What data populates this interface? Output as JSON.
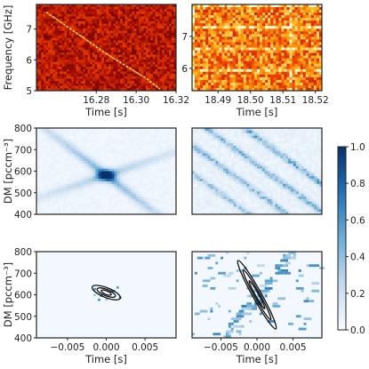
{
  "chart_data": [
    {
      "type": "heatmap",
      "panel": "top-left",
      "colormap": "hot",
      "xlabel": "Time [s]",
      "ylabel": "Frequency [GHz]",
      "xlim": [
        16.25,
        16.32
      ],
      "ylim": [
        5.0,
        7.8
      ],
      "xticks": [
        16.28,
        16.3,
        16.32
      ],
      "xtick_labels": [
        "16.28",
        "16.30",
        "16.32"
      ],
      "yticks": [
        5,
        6,
        7
      ],
      "ytick_labels": [
        "5",
        "6",
        "7"
      ],
      "description_points": {
        "x": [
          16.255,
          16.265,
          16.275,
          16.285,
          16.295,
          16.305,
          16.312
        ],
        "y": [
          7.55,
          7.1,
          6.65,
          6.2,
          5.8,
          5.4,
          5.05
        ]
      }
    },
    {
      "type": "heatmap",
      "panel": "top-right",
      "colormap": "hot",
      "xlabel": "Time [s]",
      "ylabel": "",
      "xlim": [
        18.482,
        18.522
      ],
      "ylim": [
        5.3,
        8.0
      ],
      "xticks": [
        18.49,
        18.5,
        18.51,
        18.52
      ],
      "xtick_labels": [
        "18.49",
        "18.50",
        "18.51",
        "18.52"
      ],
      "yticks": [
        6,
        7
      ],
      "ytick_labels": [
        "6",
        "7"
      ]
    },
    {
      "type": "heatmap",
      "panel": "middle-left",
      "colormap": "Blues",
      "xlabel": "",
      "ylabel": "DM [pccm⁻³]",
      "ylim": [
        400,
        800
      ],
      "yticks": [
        400,
        500,
        600,
        700,
        800
      ],
      "ytick_labels": [
        "400",
        "500",
        "600",
        "700",
        "800"
      ],
      "peak": {
        "time": 0.0,
        "dm": 612
      }
    },
    {
      "type": "heatmap",
      "panel": "middle-right",
      "colormap": "Blues",
      "xlabel": "",
      "ylabel": "",
      "ylim": [
        400,
        800
      ]
    },
    {
      "type": "heatmap",
      "panel": "bottom-left",
      "colormap": "Blues",
      "xlabel": "Time [s]",
      "ylabel": "DM [pccm⁻³]",
      "xlim": [
        -0.009,
        0.009
      ],
      "ylim": [
        400,
        800
      ],
      "xticks": [
        -0.005,
        0.0,
        0.005
      ],
      "xtick_labels": [
        "−0.005",
        "0.000",
        "0.005"
      ],
      "yticks": [
        400,
        500,
        600,
        700,
        800
      ],
      "ytick_labels": [
        "400",
        "500",
        "600",
        "700",
        "800"
      ],
      "contour_center": {
        "time": 0.0,
        "dm": 610
      }
    },
    {
      "type": "heatmap",
      "panel": "bottom-right",
      "colormap": "Blues",
      "xlabel": "Time [s]",
      "ylabel": "",
      "xlim": [
        -0.009,
        0.009
      ],
      "ylim": [
        400,
        800
      ],
      "xticks": [
        -0.005,
        0.0,
        0.005
      ],
      "xtick_labels": [
        "−0.005",
        "0.000",
        "0.005"
      ],
      "contour_center": {
        "time": 0.0,
        "dm": 600
      }
    }
  ],
  "colorbar": {
    "colormap": "Blues",
    "range": [
      0.0,
      1.0
    ],
    "ticks": [
      0.0,
      0.2,
      0.4,
      0.6,
      0.8,
      1.0
    ],
    "tick_labels": [
      "0.0",
      "0.2",
      "0.4",
      "0.6",
      "0.8",
      "1.0"
    ]
  }
}
